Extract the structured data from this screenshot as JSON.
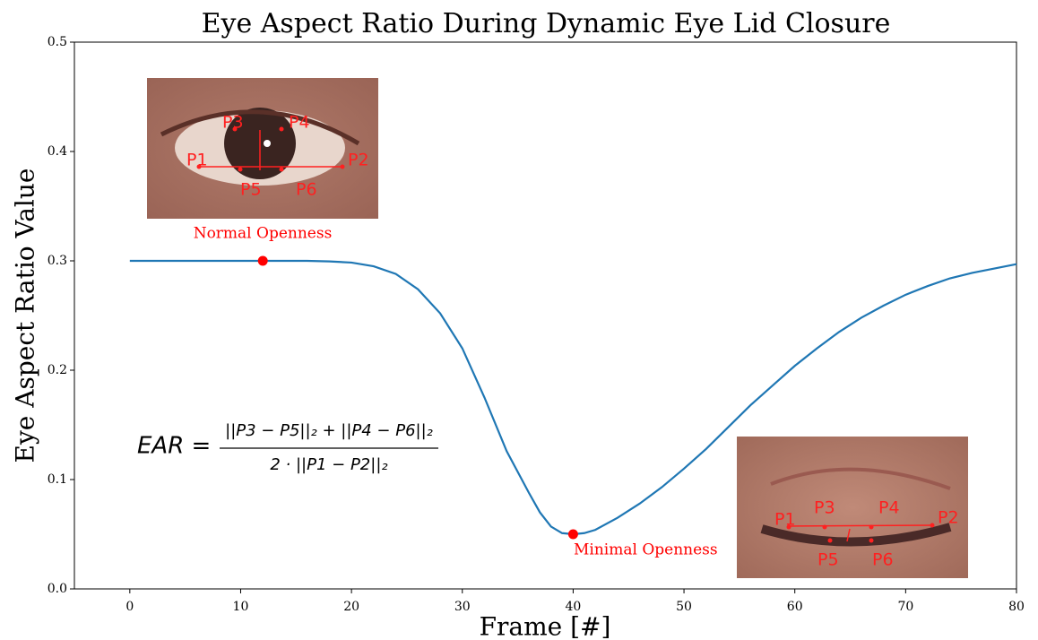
{
  "chart_data": {
    "type": "line",
    "title": "Eye Aspect Ratio During Dynamic Eye Lid Closure",
    "x_label": "Frame [#]",
    "y_label": "Eye Aspect Ratio Value",
    "xlim": [
      -5,
      80
    ],
    "ylim": [
      0,
      0.5
    ],
    "xticks": [
      0,
      10,
      20,
      30,
      40,
      50,
      60,
      70,
      80
    ],
    "yticks": [
      {
        "value": 0,
        "label": "0.0"
      },
      0.1,
      0.2,
      0.3,
      0.4,
      0.5
    ],
    "series": [
      {
        "color": "#1f77b4",
        "x": [
          0,
          2,
          4,
          6,
          8,
          10,
          12,
          14,
          16,
          18,
          20,
          22,
          24,
          26,
          28,
          30,
          32,
          34,
          36,
          37,
          38,
          39,
          40,
          41,
          42,
          44,
          46,
          48,
          50,
          52,
          54,
          56,
          58,
          60,
          62,
          64,
          66,
          68,
          70,
          72,
          74,
          76,
          78,
          80
        ],
        "values": [
          0.3,
          0.3,
          0.3,
          0.3,
          0.3,
          0.3,
          0.3,
          0.3,
          0.3,
          0.2995,
          0.2984,
          0.295,
          0.288,
          0.274,
          0.252,
          0.22,
          0.175,
          0.126,
          0.088,
          0.07,
          0.057,
          0.051,
          0.05,
          0.051,
          0.054,
          0.065,
          0.078,
          0.093,
          0.11,
          0.128,
          0.148,
          0.168,
          0.186,
          0.204,
          0.22,
          0.235,
          0.248,
          0.259,
          0.269,
          0.277,
          0.284,
          0.289,
          0.293,
          0.297
        ]
      }
    ],
    "highlights": [
      {
        "x": 12,
        "value": 0.3,
        "color": "#ff0000",
        "label": "Normal Openness"
      },
      {
        "x": 40,
        "value": 0.05,
        "color": "#ff0000",
        "label": "Minimal Openness"
      }
    ],
    "formula": {
      "lhs": "EAR =",
      "numerator": "||P3 − P5||₂ + ||P4 − P6||₂",
      "denominator": "2 · ||P1 − P2||₂"
    },
    "insets": [
      {
        "landmarks": [
          "P1",
          "P2",
          "P3",
          "P4",
          "P5",
          "P6"
        ]
      },
      {
        "landmarks": [
          "P1",
          "P2",
          "P3",
          "P4",
          "P5",
          "P6"
        ]
      }
    ]
  }
}
